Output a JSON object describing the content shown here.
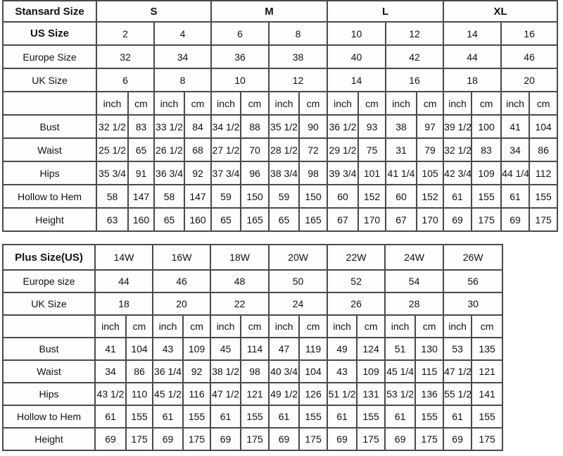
{
  "standard": {
    "header_label": "Stansard Size",
    "sizes": [
      "S",
      "M",
      "L",
      "XL"
    ],
    "size_rows": [
      {
        "label": "US Size",
        "values": [
          "2",
          "4",
          "6",
          "8",
          "10",
          "12",
          "14",
          "16"
        ]
      },
      {
        "label": "Europe Size",
        "values": [
          "32",
          "34",
          "36",
          "38",
          "40",
          "42",
          "44",
          "46"
        ]
      },
      {
        "label": "UK Size",
        "values": [
          "6",
          "8",
          "10",
          "12",
          "14",
          "16",
          "18",
          "20"
        ]
      }
    ],
    "unit_labels": [
      "inch",
      "cm"
    ],
    "measurements": [
      {
        "label": "Bust",
        "values": [
          "32 1/2",
          "83",
          "33 1/2",
          "84",
          "34 1/2",
          "88",
          "35 1/2",
          "90",
          "36 1/2",
          "93",
          "38",
          "97",
          "39 1/2",
          "100",
          "41",
          "104"
        ]
      },
      {
        "label": "Waist",
        "values": [
          "25 1/2",
          "65",
          "26 1/2",
          "68",
          "27 1/2",
          "70",
          "28 1/2",
          "72",
          "29 1/2",
          "75",
          "31",
          "79",
          "32 1/2",
          "83",
          "34",
          "86"
        ]
      },
      {
        "label": "Hips",
        "values": [
          "35 3/4",
          "91",
          "36 3/4",
          "92",
          "37 3/4",
          "96",
          "38 3/4",
          "98",
          "39 3/4",
          "101",
          "41 1/4",
          "105",
          "42 3/4",
          "109",
          "44 1/4",
          "112"
        ]
      },
      {
        "label": "Hollow to Hem",
        "values": [
          "58",
          "147",
          "58",
          "147",
          "59",
          "150",
          "59",
          "150",
          "60",
          "152",
          "60",
          "152",
          "61",
          "155",
          "61",
          "155"
        ]
      },
      {
        "label": "Height",
        "values": [
          "63",
          "160",
          "65",
          "160",
          "65",
          "165",
          "65",
          "165",
          "67",
          "170",
          "67",
          "170",
          "69",
          "175",
          "69",
          "175"
        ]
      }
    ]
  },
  "plus": {
    "header_label": "Plus Size(US)",
    "sizes": [
      "14W",
      "16W",
      "18W",
      "20W",
      "22W",
      "24W",
      "26W"
    ],
    "size_rows": [
      {
        "label": "Europe size",
        "values": [
          "44",
          "46",
          "48",
          "50",
          "52",
          "54",
          "56"
        ]
      },
      {
        "label": "UK Size",
        "values": [
          "18",
          "20",
          "22",
          "24",
          "26",
          "28",
          "30"
        ]
      }
    ],
    "unit_labels": [
      "inch",
      "cm"
    ],
    "measurements": [
      {
        "label": "Bust",
        "values": [
          "41",
          "104",
          "43",
          "109",
          "45",
          "114",
          "47",
          "119",
          "49",
          "124",
          "51",
          "130",
          "53",
          "135"
        ]
      },
      {
        "label": "Waist",
        "values": [
          "34",
          "86",
          "36 1/4",
          "92",
          "38 1/2",
          "98",
          "40 3/4",
          "104",
          "43",
          "109",
          "45 1/4",
          "115",
          "47 1/2",
          "121"
        ]
      },
      {
        "label": "Hips",
        "values": [
          "43 1/2",
          "110",
          "45 1/2",
          "116",
          "47 1/2",
          "121",
          "49 1/2",
          "126",
          "51 1/2",
          "131",
          "53 1/2",
          "136",
          "55 1/2",
          "141"
        ]
      },
      {
        "label": "Hollow to Hem",
        "values": [
          "61",
          "155",
          "61",
          "155",
          "61",
          "155",
          "61",
          "155",
          "61",
          "155",
          "61",
          "155",
          "61",
          "155"
        ]
      },
      {
        "label": "Height",
        "values": [
          "69",
          "175",
          "69",
          "175",
          "69",
          "175",
          "69",
          "175",
          "69",
          "175",
          "69",
          "175",
          "69",
          "175"
        ]
      }
    ]
  }
}
